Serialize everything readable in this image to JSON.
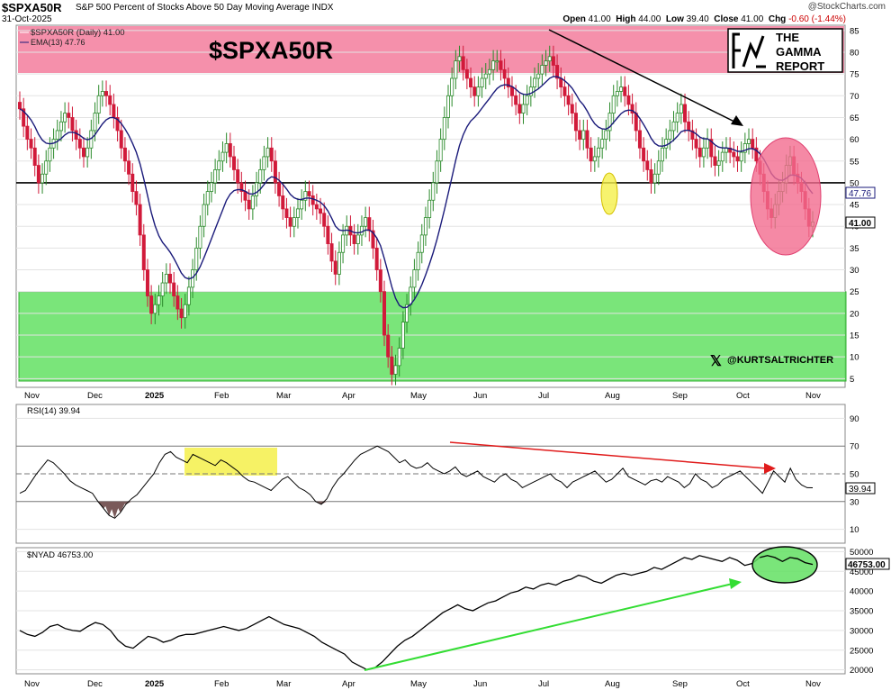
{
  "header": {
    "symbol": "$SPXA50R",
    "description": "S&P 500 Percent of Stocks Above 50 Day Moving Average INDX",
    "date": "31-Oct-2025",
    "watermark": "@StockCharts.com",
    "open_label": "Open",
    "open": "41.00",
    "high_label": "High",
    "high": "44.00",
    "low_label": "Low",
    "low": "39.40",
    "close_label": "Close",
    "close": "41.00",
    "chg_label": "Chg",
    "chg": "-0.60 (-1.44%)"
  },
  "annotations": {
    "big_title": "$SPXA50R",
    "logo_line1": "THE",
    "logo_line2": "GAMMA",
    "logo_line3": "REPORT",
    "handle": "@KURTSALTRICHTER"
  },
  "colors": {
    "up": "#2a8a2a",
    "down": "#d11a3a",
    "ema": "#1a1a7a",
    "overbought_zone": "#f26b8f",
    "oversold_zone": "#63e063",
    "rsi_highlight": "#f5f04a",
    "red_arrow": "#e01b1b",
    "green_arrow": "#33dd33"
  },
  "chart_data": [
    {
      "type": "candlestick",
      "legend": [
        "$SPXA50R (Daily) 41.00",
        "EMA(13) 47.76"
      ],
      "yticks": [
        5,
        10,
        15,
        20,
        25,
        30,
        35,
        40,
        45,
        50,
        55,
        60,
        65,
        70,
        75,
        80,
        85
      ],
      "ylim": [
        3,
        86
      ],
      "hline": 50,
      "last_value_label": "41.00",
      "ema_value_label": "47.76",
      "x_labels": [
        "Nov",
        "Dec",
        "2025",
        "Feb",
        "Mar",
        "Apr",
        "May",
        "Jun",
        "Jul",
        "Aug",
        "Sep",
        "Oct",
        "Nov"
      ],
      "close": [
        67,
        63,
        60,
        58,
        54,
        50,
        52,
        55,
        58,
        60,
        62,
        64,
        66,
        65,
        62,
        60,
        58,
        56,
        58,
        62,
        66,
        70,
        71,
        70,
        68,
        65,
        62,
        58,
        55,
        52,
        48,
        45,
        38,
        30,
        24,
        20,
        22,
        24,
        27,
        29,
        27,
        24,
        21,
        19,
        22,
        26,
        30,
        35,
        40,
        45,
        48,
        50,
        53,
        55,
        57,
        59,
        56,
        53,
        50,
        48,
        46,
        44,
        47,
        50,
        53,
        56,
        58,
        55,
        50,
        47,
        44,
        42,
        40,
        42,
        44,
        46,
        48,
        47,
        45,
        44,
        43,
        40,
        36,
        32,
        29,
        34,
        38,
        40,
        38,
        36,
        38,
        40,
        42,
        39,
        35,
        30,
        25,
        15,
        10,
        6,
        8,
        12,
        18,
        22,
        26,
        30,
        34,
        38,
        42,
        46,
        50,
        55,
        60,
        65,
        70,
        74,
        78,
        79,
        76,
        74,
        72,
        70,
        72,
        74,
        75,
        76,
        78,
        78,
        76,
        74,
        72,
        70,
        68,
        66,
        68,
        70,
        72,
        74,
        75,
        77,
        78,
        79,
        77,
        74,
        72,
        70,
        68,
        66,
        62,
        60,
        62,
        58,
        55,
        56,
        58,
        60,
        62,
        66,
        70,
        71,
        72,
        70,
        68,
        66,
        62,
        58,
        55,
        53,
        50,
        52,
        55,
        58,
        60,
        62,
        64,
        66,
        68,
        64,
        62,
        60,
        58,
        56,
        58,
        60,
        56,
        54,
        55,
        57,
        58,
        57,
        56,
        55,
        57,
        59,
        60,
        58,
        55,
        52,
        48,
        44,
        42,
        45,
        48,
        50,
        54,
        56,
        52,
        50,
        48,
        44,
        40,
        41
      ]
    },
    {
      "type": "line",
      "legend": "RSI(14) 39.94",
      "yticks": [
        10,
        30,
        50,
        70,
        90
      ],
      "ylim": [
        0,
        100
      ],
      "value_label": "39.94",
      "values": [
        36,
        38,
        44,
        50,
        55,
        60,
        58,
        54,
        50,
        45,
        42,
        40,
        38,
        36,
        30,
        25,
        20,
        18,
        22,
        28,
        32,
        35,
        40,
        45,
        50,
        58,
        64,
        66,
        62,
        60,
        58,
        64,
        62,
        60,
        58,
        56,
        60,
        58,
        55,
        52,
        48,
        45,
        44,
        42,
        40,
        38,
        42,
        46,
        48,
        44,
        40,
        38,
        35,
        30,
        28,
        32,
        40,
        46,
        50,
        55,
        60,
        64,
        66,
        68,
        70,
        68,
        66,
        62,
        58,
        60,
        56,
        54,
        55,
        58,
        54,
        52,
        50,
        52,
        55,
        50,
        48,
        50,
        52,
        48,
        46,
        44,
        48,
        50,
        46,
        44,
        40,
        42,
        44,
        46,
        48,
        50,
        46,
        44,
        40,
        44,
        46,
        48,
        50,
        52,
        48,
        44,
        46,
        50,
        54,
        48,
        46,
        44,
        42,
        45,
        46,
        44,
        48,
        46,
        44,
        40,
        43,
        50,
        46,
        44,
        40,
        42,
        46,
        48,
        50,
        52,
        48,
        44,
        40,
        36,
        44,
        52,
        48,
        44,
        54,
        46,
        42,
        40,
        39.94
      ]
    },
    {
      "type": "line",
      "legend": "$NYAD 46753.00",
      "yticks": [
        20000,
        25000,
        30000,
        35000,
        40000,
        45000,
        50000
      ],
      "ylim": [
        19000,
        51000
      ],
      "value_label": "46753.00",
      "values": [
        30000,
        29000,
        28500,
        29500,
        31000,
        31500,
        30500,
        30000,
        29800,
        31000,
        32000,
        31500,
        30000,
        27500,
        26000,
        25500,
        27000,
        28500,
        28000,
        27000,
        27500,
        28500,
        29000,
        29000,
        29500,
        30000,
        30500,
        31000,
        30500,
        30000,
        30500,
        31500,
        32500,
        33500,
        32500,
        31500,
        31000,
        30500,
        29500,
        28500,
        27000,
        26000,
        25000,
        24000,
        22000,
        21000,
        20000,
        20500,
        22000,
        24000,
        26000,
        27500,
        28500,
        30000,
        31500,
        33000,
        34500,
        35500,
        36500,
        35500,
        35000,
        36000,
        37000,
        37500,
        38500,
        39500,
        40000,
        41000,
        40500,
        41500,
        42000,
        41500,
        42500,
        43000,
        44000,
        43500,
        42500,
        42000,
        43000,
        44000,
        44500,
        44000,
        44500,
        45000,
        46000,
        45500,
        46500,
        47500,
        48500,
        48000,
        49000,
        48500,
        48000,
        47500,
        48500,
        47800,
        46500,
        47000,
        48500,
        49000,
        48500,
        47500,
        48500,
        48200,
        47200,
        46753
      ]
    }
  ]
}
